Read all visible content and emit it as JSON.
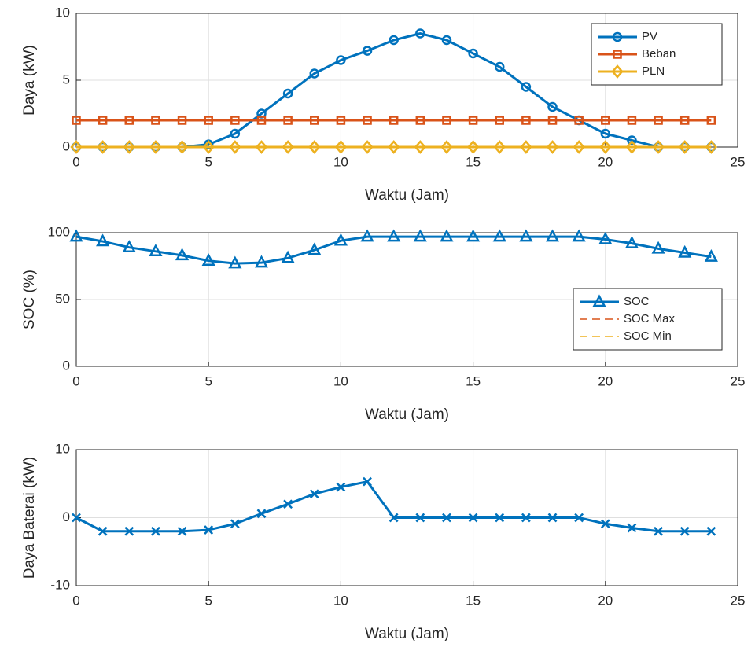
{
  "chart_data": [
    {
      "type": "line",
      "xlabel": "Waktu (Jam)",
      "ylabel": "Daya (kW)",
      "x": [
        0,
        1,
        2,
        3,
        4,
        5,
        6,
        7,
        8,
        9,
        10,
        11,
        12,
        13,
        14,
        15,
        16,
        17,
        18,
        19,
        20,
        21,
        22,
        23,
        24
      ],
      "xlim": [
        0,
        25
      ],
      "xticks": [
        0,
        5,
        10,
        15,
        20,
        25
      ],
      "ylim": [
        0,
        10
      ],
      "yticks": [
        0,
        5,
        10
      ],
      "grid": true,
      "legend": "northeast",
      "series": [
        {
          "name": "PV",
          "color": "#0072BD",
          "marker": "circle",
          "values": [
            0,
            0,
            0,
            0,
            0,
            0.2,
            1,
            2.5,
            4,
            5.5,
            6.5,
            7.2,
            8,
            8.5,
            8,
            7,
            6,
            4.5,
            3,
            2,
            1,
            0.5,
            0,
            0,
            0
          ]
        },
        {
          "name": "Beban",
          "color": "#D95319",
          "marker": "square",
          "values": [
            2,
            2,
            2,
            2,
            2,
            2,
            2,
            2,
            2,
            2,
            2,
            2,
            2,
            2,
            2,
            2,
            2,
            2,
            2,
            2,
            2,
            2,
            2,
            2,
            2
          ]
        },
        {
          "name": "PLN",
          "color": "#EDB120",
          "marker": "diamond",
          "values": [
            0,
            0,
            0,
            0,
            0,
            0,
            0,
            0,
            0,
            0,
            0,
            0,
            0,
            0,
            0,
            0,
            0,
            0,
            0,
            0,
            0,
            0,
            0,
            0,
            0
          ]
        }
      ]
    },
    {
      "type": "line",
      "xlabel": "Waktu (Jam)",
      "ylabel": "SOC (%)",
      "x": [
        0,
        1,
        2,
        3,
        4,
        5,
        6,
        7,
        8,
        9,
        10,
        11,
        12,
        13,
        14,
        15,
        16,
        17,
        18,
        19,
        20,
        21,
        22,
        23,
        24
      ],
      "xlim": [
        0,
        25
      ],
      "xticks": [
        0,
        5,
        10,
        15,
        20,
        25
      ],
      "ylim": [
        0,
        100
      ],
      "yticks": [
        0,
        50,
        100
      ],
      "grid": true,
      "legend": "east",
      "series": [
        {
          "name": "SOC",
          "color": "#0072BD",
          "marker": "triangle",
          "values": [
            97,
            93.5,
            89,
            86,
            83,
            79,
            77,
            77.6,
            81,
            87,
            94,
            97,
            97,
            97,
            97,
            97,
            97,
            97,
            97,
            97,
            95,
            92,
            88,
            85,
            82
          ]
        },
        {
          "name": "SOC Max",
          "color": "#D95319",
          "dash": true
        },
        {
          "name": "SOC Min",
          "color": "#EDB120",
          "dash": true
        }
      ]
    },
    {
      "type": "line",
      "xlabel": "Waktu (Jam)",
      "ylabel": "Daya Baterai (kW)",
      "x": [
        0,
        1,
        2,
        3,
        4,
        5,
        6,
        7,
        8,
        9,
        10,
        11,
        12,
        13,
        14,
        15,
        16,
        17,
        18,
        19,
        20,
        21,
        22,
        23,
        24
      ],
      "xlim": [
        0,
        25
      ],
      "xticks": [
        0,
        5,
        10,
        15,
        20,
        25
      ],
      "ylim": [
        -10,
        10
      ],
      "yticks": [
        -10,
        0,
        10
      ],
      "grid": true,
      "series": [
        {
          "name": "Baterai",
          "color": "#0072BD",
          "marker": "x",
          "values": [
            0,
            -2,
            -2,
            -2,
            -2,
            -1.8,
            -0.9,
            0.6,
            2,
            3.5,
            4.5,
            5.3,
            0,
            0,
            0,
            0,
            0,
            0,
            0,
            0,
            -0.9,
            -1.5,
            -2,
            -2,
            -2
          ]
        }
      ]
    }
  ]
}
